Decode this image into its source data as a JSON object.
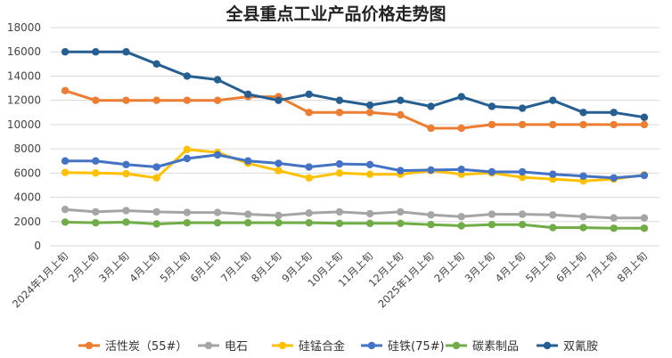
{
  "chart_data": {
    "type": "line",
    "title": "全县重点工业产品价格走势图",
    "xlabel": "",
    "ylabel": "",
    "ylim": [
      0,
      18000
    ],
    "yticks": [
      0,
      2000,
      4000,
      6000,
      8000,
      10000,
      12000,
      14000,
      16000,
      18000
    ],
    "grid": true,
    "legend_position": "bottom",
    "categories": [
      "2024年1月上旬",
      "2月上旬",
      "3月上旬",
      "4月上旬",
      "5月上旬",
      "6月上旬",
      "7月上旬",
      "8月上旬",
      "9月上旬",
      "10月上旬",
      "11月上旬",
      "12月上旬",
      "2025年1月上旬",
      "2月上旬",
      "3月上旬",
      "4月上旬",
      "5月上旬",
      "6月上旬",
      "7月上旬",
      "8月上旬"
    ],
    "series": [
      {
        "name": "活性炭（55#）",
        "color": "#ED7D31",
        "values": [
          12800,
          12000,
          12000,
          12000,
          12000,
          12000,
          12300,
          12300,
          11000,
          11000,
          11000,
          10800,
          9700,
          9700,
          10000,
          10000,
          10000,
          10000,
          10000,
          10000
        ]
      },
      {
        "name": "电石",
        "color": "#A5A5A5",
        "values": [
          3000,
          2800,
          2900,
          2800,
          2750,
          2750,
          2600,
          2500,
          2700,
          2800,
          2650,
          2800,
          2550,
          2400,
          2600,
          2600,
          2550,
          2400,
          2300,
          2300
        ]
      },
      {
        "name": "硅锰合金",
        "color": "#FFC000",
        "values": [
          6050,
          6000,
          5950,
          5600,
          7950,
          7700,
          6800,
          6200,
          5600,
          6000,
          5900,
          5900,
          6200,
          5900,
          6000,
          5650,
          5500,
          5350,
          5500,
          5850
        ]
      },
      {
        "name": "硅铁(75#)",
        "color": "#4472C4",
        "values": [
          7000,
          7000,
          6700,
          6500,
          7200,
          7500,
          7000,
          6800,
          6500,
          6750,
          6700,
          6200,
          6250,
          6300,
          6100,
          6100,
          5900,
          5750,
          5600,
          5800
        ]
      },
      {
        "name": "碳素制品",
        "color": "#70AD47",
        "values": [
          1950,
          1900,
          1950,
          1800,
          1900,
          1900,
          1900,
          1900,
          1900,
          1850,
          1850,
          1850,
          1750,
          1650,
          1750,
          1750,
          1500,
          1500,
          1450,
          1450
        ]
      },
      {
        "name": "双氰胺",
        "color": "#255E91",
        "values": [
          16000,
          16000,
          16000,
          15000,
          14000,
          13700,
          12500,
          12000,
          12500,
          12000,
          11600,
          12000,
          11500,
          12300,
          11500,
          11350,
          12000,
          11000,
          11000,
          10600
        ]
      }
    ]
  }
}
